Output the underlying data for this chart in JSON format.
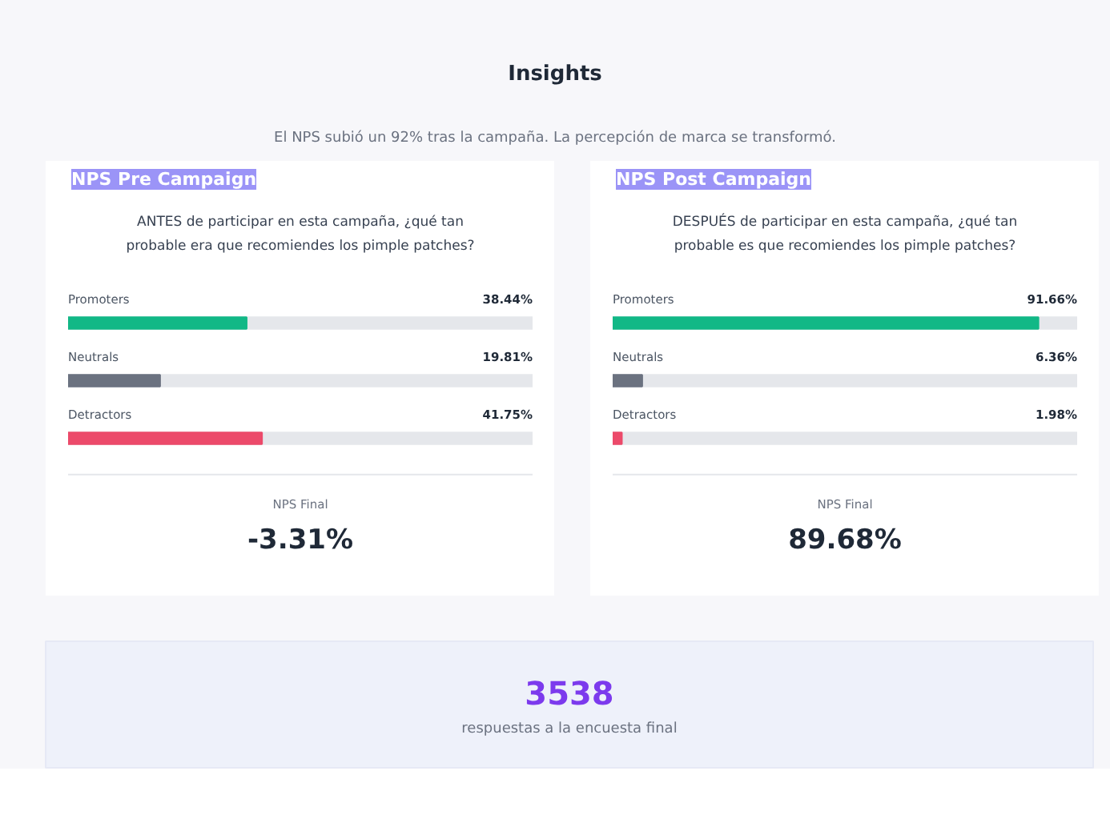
{
  "chart_data": [
    {
      "type": "other",
      "title": "Insights",
      "annotations": [
        "El NPS subió un 92% tras la campaña. La percepción de marca se transformó."
      ]
    },
    {
      "type": "bar",
      "orientation": "horizontal",
      "title": "NPS Pre Campaign",
      "subtitle": "ANTES de participar en esta campaña, ¿qué tan probable era que recomiendes los pimple patches?",
      "categories": [
        "Promoters",
        "Neutrals",
        "Detractors"
      ],
      "values": [
        38.44,
        19.81,
        41.75
      ],
      "value_labels": [
        "38.44%",
        "19.81%",
        "41.75%"
      ],
      "colors": [
        "#12b886",
        "#6b7280",
        "#ec4a6a"
      ],
      "xlim": [
        0,
        100
      ],
      "tick_labels": false,
      "grid": false,
      "annotations": [
        "NPS Final",
        "-3.31%"
      ]
    },
    {
      "type": "bar",
      "orientation": "horizontal",
      "title": "NPS Post Campaign",
      "subtitle": "DESPUÉS de participar en esta campaña, ¿qué tan probable es que recomiendes los pimple patches?",
      "categories": [
        "Promoters",
        "Neutrals",
        "Detractors"
      ],
      "values": [
        91.66,
        6.36,
        1.98
      ],
      "value_labels": [
        "91.66%",
        "6.36%",
        "1.98%"
      ],
      "colors": [
        "#12b886",
        "#6b7280",
        "#ec4a6a"
      ],
      "xlim": [
        0,
        100
      ],
      "tick_labels": false,
      "grid": false,
      "annotations": [
        "NPS Final",
        "89.68%"
      ]
    },
    {
      "type": "other",
      "title": "3538",
      "annotations": [
        "respuestas a la encuesta final"
      ]
    }
  ]
}
